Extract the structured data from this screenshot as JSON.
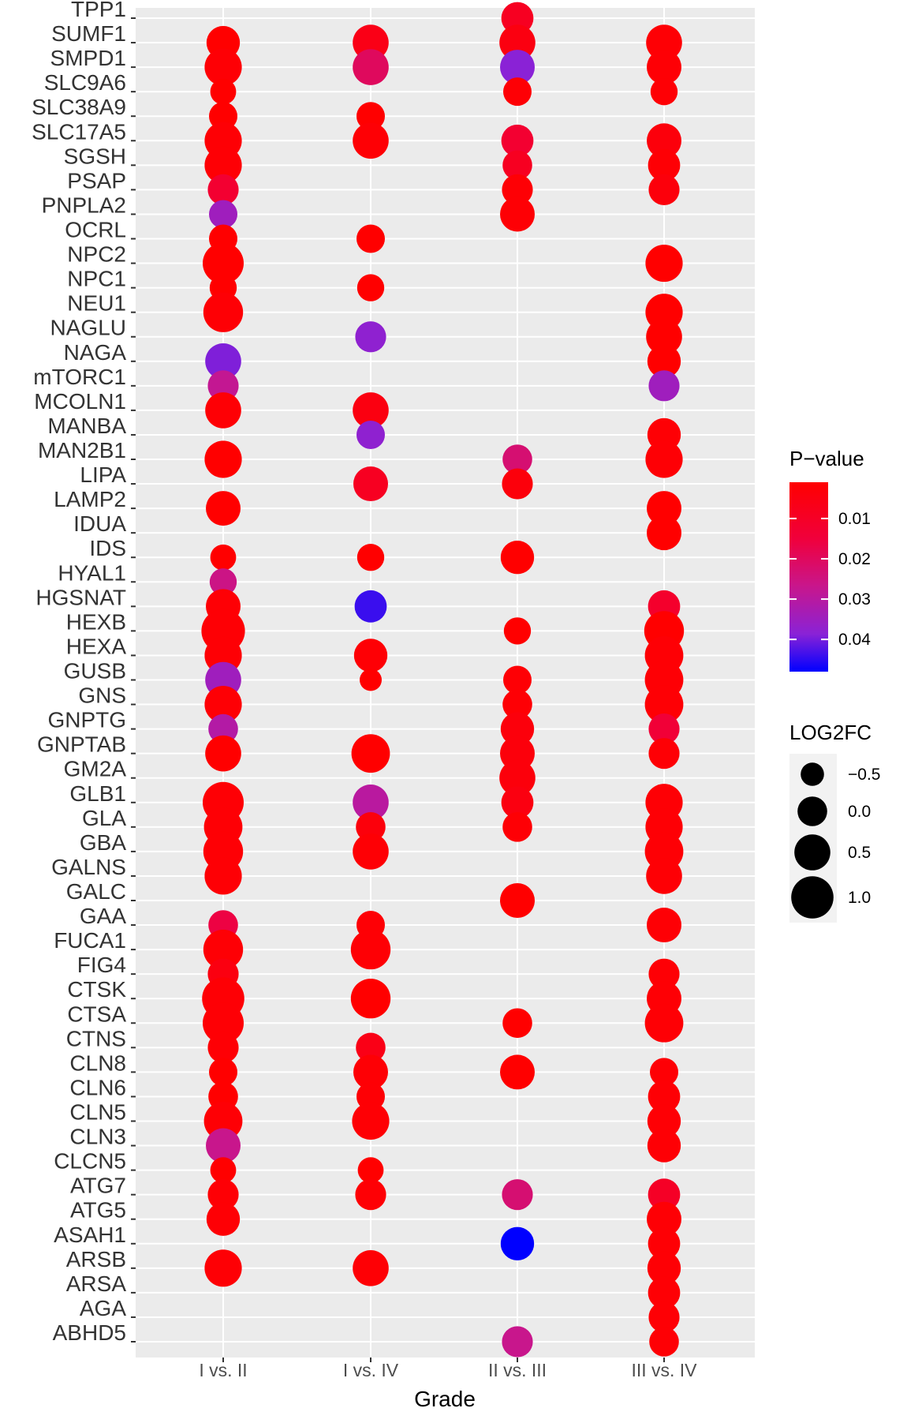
{
  "chart_data": {
    "type": "scatter",
    "xlabel": "Grade",
    "ylabel": "",
    "categories": [
      "I vs. II",
      "I vs. IV",
      "II vs. III",
      "III vs. IV"
    ],
    "genes": [
      "TPP1",
      "SUMF1",
      "SMPD1",
      "SLC9A6",
      "SLC38A9",
      "SLC17A5",
      "SGSH",
      "PSAP",
      "PNPLA2",
      "OCRL",
      "NPC2",
      "NPC1",
      "NEU1",
      "NAGLU",
      "NAGA",
      "mTORC1",
      "MCOLN1",
      "MANBA",
      "MAN2B1",
      "LIPA",
      "LAMP2",
      "IDUA",
      "IDS",
      "HYAL1",
      "HGSNAT",
      "HEXB",
      "HEXA",
      "GUSB",
      "GNS",
      "GNPTG",
      "GNPTAB",
      "GM2A",
      "GLB1",
      "GLA",
      "GBA",
      "GALNS",
      "GALC",
      "GAA",
      "FUCA1",
      "FIG4",
      "CTSK",
      "CTSA",
      "CTNS",
      "CLN8",
      "CLN6",
      "CLN5",
      "CLN3",
      "CLCN5",
      "ATG7",
      "ATG5",
      "ASAH1",
      "ARSB",
      "ARSA",
      "AGA",
      "ABHD5"
    ],
    "points": [
      {
        "gene": "TPP1",
        "grade": "II vs. III",
        "log2fc": 0.2,
        "p": 0.007
      },
      {
        "gene": "SUMF1",
        "grade": "I vs. II",
        "log2fc": 0.3,
        "p": 0.001
      },
      {
        "gene": "SUMF1",
        "grade": "I vs. IV",
        "log2fc": 0.5,
        "p": 0.005
      },
      {
        "gene": "SUMF1",
        "grade": "II vs. III",
        "log2fc": 0.5,
        "p": 0.004
      },
      {
        "gene": "SUMF1",
        "grade": "III vs. IV",
        "log2fc": 0.5,
        "p": 0.002
      },
      {
        "gene": "SMPD1",
        "grade": "I vs. II",
        "log2fc": 0.6,
        "p": 0.002
      },
      {
        "gene": "SMPD1",
        "grade": "I vs. IV",
        "log2fc": 0.5,
        "p": 0.017
      },
      {
        "gene": "SMPD1",
        "grade": "II vs. III",
        "log2fc": 0.4,
        "p": 0.036
      },
      {
        "gene": "SMPD1",
        "grade": "III vs. IV",
        "log2fc": 0.4,
        "p": 0.002
      },
      {
        "gene": "SLC9A6",
        "grade": "I vs. II",
        "log2fc": -0.3,
        "p": 0.001
      },
      {
        "gene": "SLC9A6",
        "grade": "II vs. III",
        "log2fc": -0.1,
        "p": 0.002
      },
      {
        "gene": "SLC9A6",
        "grade": "III vs. IV",
        "log2fc": -0.2,
        "p": 0.002
      },
      {
        "gene": "SLC38A9",
        "grade": "I vs. II",
        "log2fc": -0.1,
        "p": 0.001
      },
      {
        "gene": "SLC38A9",
        "grade": "I vs. IV",
        "log2fc": -0.1,
        "p": 0.001
      },
      {
        "gene": "SLC17A5",
        "grade": "I vs. II",
        "log2fc": 0.6,
        "p": 0.002
      },
      {
        "gene": "SLC17A5",
        "grade": "I vs. IV",
        "log2fc": 0.5,
        "p": 0.002
      },
      {
        "gene": "SLC17A5",
        "grade": "II vs. III",
        "log2fc": 0.2,
        "p": 0.01
      },
      {
        "gene": "SLC17A5",
        "grade": "III vs. IV",
        "log2fc": 0.4,
        "p": 0.003
      },
      {
        "gene": "SGSH",
        "grade": "I vs. II",
        "log2fc": 0.6,
        "p": 0.002
      },
      {
        "gene": "SGSH",
        "grade": "II vs. III",
        "log2fc": 0.0,
        "p": 0.007
      },
      {
        "gene": "SGSH",
        "grade": "III vs. IV",
        "log2fc": 0.2,
        "p": 0.002
      },
      {
        "gene": "PSAP",
        "grade": "I vs. II",
        "log2fc": 0.1,
        "p": 0.01
      },
      {
        "gene": "PSAP",
        "grade": "II vs. III",
        "log2fc": 0.1,
        "p": 0.002
      },
      {
        "gene": "PSAP",
        "grade": "III vs. IV",
        "log2fc": 0.1,
        "p": 0.003
      },
      {
        "gene": "PNPLA2",
        "grade": "I vs. II",
        "log2fc": -0.1,
        "p": 0.032
      },
      {
        "gene": "PNPLA2",
        "grade": "II vs. III",
        "log2fc": 0.4,
        "p": 0.002
      },
      {
        "gene": "OCRL",
        "grade": "I vs. II",
        "log2fc": -0.1,
        "p": 0.001
      },
      {
        "gene": "OCRL",
        "grade": "I vs. IV",
        "log2fc": -0.1,
        "p": 0.001
      },
      {
        "gene": "NPC2",
        "grade": "I vs. II",
        "log2fc": 0.9,
        "p": 0.001
      },
      {
        "gene": "NPC2",
        "grade": "III vs. IV",
        "log2fc": 0.6,
        "p": 0.001
      },
      {
        "gene": "NPC1",
        "grade": "I vs. II",
        "log2fc": -0.2,
        "p": 0.001
      },
      {
        "gene": "NPC1",
        "grade": "I vs. IV",
        "log2fc": -0.2,
        "p": 0.001
      },
      {
        "gene": "NEU1",
        "grade": "I vs. II",
        "log2fc": 0.8,
        "p": 0.002
      },
      {
        "gene": "NEU1",
        "grade": "III vs. IV",
        "log2fc": 0.6,
        "p": 0.001
      },
      {
        "gene": "NAGLU",
        "grade": "I vs. IV",
        "log2fc": 0.1,
        "p": 0.035
      },
      {
        "gene": "NAGLU",
        "grade": "III vs. IV",
        "log2fc": 0.5,
        "p": 0.001
      },
      {
        "gene": "NAGA",
        "grade": "I vs. II",
        "log2fc": 0.5,
        "p": 0.037
      },
      {
        "gene": "NAGA",
        "grade": "III vs. IV",
        "log2fc": 0.3,
        "p": 0.001
      },
      {
        "gene": "mTORC1",
        "grade": "I vs. II",
        "log2fc": 0.1,
        "p": 0.025
      },
      {
        "gene": "mTORC1",
        "grade": "III vs. IV",
        "log2fc": 0.1,
        "p": 0.032
      },
      {
        "gene": "MCOLN1",
        "grade": "I vs. II",
        "log2fc": 0.5,
        "p": 0.002
      },
      {
        "gene": "MCOLN1",
        "grade": "I vs. IV",
        "log2fc": 0.5,
        "p": 0.004
      },
      {
        "gene": "MANBA",
        "grade": "I vs. IV",
        "log2fc": -0.1,
        "p": 0.035
      },
      {
        "gene": "MANBA",
        "grade": "III vs. IV",
        "log2fc": 0.3,
        "p": 0.002
      },
      {
        "gene": "MAN2B1",
        "grade": "I vs. II",
        "log2fc": 0.6,
        "p": 0.001
      },
      {
        "gene": "MAN2B1",
        "grade": "II vs. III",
        "log2fc": 0.0,
        "p": 0.02
      },
      {
        "gene": "MAN2B1",
        "grade": "III vs. IV",
        "log2fc": 0.6,
        "p": 0.002
      },
      {
        "gene": "LIPA",
        "grade": "I vs. IV",
        "log2fc": 0.4,
        "p": 0.007
      },
      {
        "gene": "LIPA",
        "grade": "II vs. III",
        "log2fc": 0.1,
        "p": 0.003
      },
      {
        "gene": "LAMP2",
        "grade": "I vs. II",
        "log2fc": 0.4,
        "p": 0.001
      },
      {
        "gene": "LAMP2",
        "grade": "III vs. IV",
        "log2fc": 0.4,
        "p": 0.001
      },
      {
        "gene": "IDUA",
        "grade": "III vs. IV",
        "log2fc": 0.4,
        "p": 0.001
      },
      {
        "gene": "IDS",
        "grade": "I vs. II",
        "log2fc": -0.3,
        "p": 0.001
      },
      {
        "gene": "IDS",
        "grade": "I vs. IV",
        "log2fc": -0.2,
        "p": 0.001
      },
      {
        "gene": "IDS",
        "grade": "II vs. III",
        "log2fc": 0.3,
        "p": 0.001
      },
      {
        "gene": "HYAL1",
        "grade": "I vs. II",
        "log2fc": -0.2,
        "p": 0.023
      },
      {
        "gene": "HGSNAT",
        "grade": "I vs. II",
        "log2fc": 0.4,
        "p": 0.002
      },
      {
        "gene": "HGSNAT",
        "grade": "I vs. IV",
        "log2fc": 0.2,
        "p": 0.043
      },
      {
        "gene": "HGSNAT",
        "grade": "III vs. IV",
        "log2fc": 0.2,
        "p": 0.009
      },
      {
        "gene": "HEXB",
        "grade": "I vs. II",
        "log2fc": 1.1,
        "p": 0.002
      },
      {
        "gene": "HEXB",
        "grade": "II vs. III",
        "log2fc": -0.2,
        "p": 0.001
      },
      {
        "gene": "HEXB",
        "grade": "III vs. IV",
        "log2fc": 0.8,
        "p": 0.001
      },
      {
        "gene": "HEXA",
        "grade": "I vs. II",
        "log2fc": 0.6,
        "p": 0.002
      },
      {
        "gene": "HEXA",
        "grade": "I vs. IV",
        "log2fc": 0.3,
        "p": 0.002
      },
      {
        "gene": "HEXA",
        "grade": "III vs. IV",
        "log2fc": 0.7,
        "p": 0.002
      },
      {
        "gene": "GUSB",
        "grade": "I vs. II",
        "log2fc": 0.5,
        "p": 0.032
      },
      {
        "gene": "GUSB",
        "grade": "I vs. IV",
        "log2fc": -0.6,
        "p": 0.001
      },
      {
        "gene": "GUSB",
        "grade": "II vs. III",
        "log2fc": -0.1,
        "p": 0.002
      },
      {
        "gene": "GUSB",
        "grade": "III vs. IV",
        "log2fc": 0.7,
        "p": 0.002
      },
      {
        "gene": "GNS",
        "grade": "I vs. II",
        "log2fc": 0.6,
        "p": 0.002
      },
      {
        "gene": "GNS",
        "grade": "II vs. III",
        "log2fc": 0.0,
        "p": 0.002
      },
      {
        "gene": "GNS",
        "grade": "III vs. IV",
        "log2fc": 0.7,
        "p": 0.002
      },
      {
        "gene": "GNPTG",
        "grade": "I vs. II",
        "log2fc": 0.0,
        "p": 0.028
      },
      {
        "gene": "GNPTG",
        "grade": "II vs. III",
        "log2fc": 0.3,
        "p": 0.003
      },
      {
        "gene": "GNPTG",
        "grade": "III vs. IV",
        "log2fc": 0.1,
        "p": 0.011
      },
      {
        "gene": "GNPTAB",
        "grade": "I vs. II",
        "log2fc": 0.5,
        "p": 0.001
      },
      {
        "gene": "GNPTAB",
        "grade": "I vs. IV",
        "log2fc": 0.7,
        "p": 0.001
      },
      {
        "gene": "GNPTAB",
        "grade": "II vs. III",
        "log2fc": 0.4,
        "p": 0.003
      },
      {
        "gene": "GNPTAB",
        "grade": "III vs. IV",
        "log2fc": 0.1,
        "p": 0.002
      },
      {
        "gene": "GM2A",
        "grade": "II vs. III",
        "log2fc": 0.5,
        "p": 0.003
      },
      {
        "gene": "GLB1",
        "grade": "I vs. II",
        "log2fc": 0.9,
        "p": 0.002
      },
      {
        "gene": "GLB1",
        "grade": "I vs. IV",
        "log2fc": 0.5,
        "p": 0.027
      },
      {
        "gene": "GLB1",
        "grade": "II vs. III",
        "log2fc": 0.2,
        "p": 0.004
      },
      {
        "gene": "GLB1",
        "grade": "III vs. IV",
        "log2fc": 0.6,
        "p": 0.002
      },
      {
        "gene": "GLA",
        "grade": "I vs. II",
        "log2fc": 0.7,
        "p": 0.002
      },
      {
        "gene": "GLA",
        "grade": "I vs. IV",
        "log2fc": 0.0,
        "p": 0.003
      },
      {
        "gene": "GLA",
        "grade": "II vs. III",
        "log2fc": 0.0,
        "p": 0.002
      },
      {
        "gene": "GLA",
        "grade": "III vs. IV",
        "log2fc": 0.6,
        "p": 0.002
      },
      {
        "gene": "GBA",
        "grade": "I vs. II",
        "log2fc": 0.8,
        "p": 0.002
      },
      {
        "gene": "GBA",
        "grade": "I vs. IV",
        "log2fc": 0.5,
        "p": 0.002
      },
      {
        "gene": "GBA",
        "grade": "III vs. IV",
        "log2fc": 0.7,
        "p": 0.002
      },
      {
        "gene": "GALNS",
        "grade": "I vs. II",
        "log2fc": 0.6,
        "p": 0.002
      },
      {
        "gene": "GALNS",
        "grade": "III vs. IV",
        "log2fc": 0.5,
        "p": 0.002
      },
      {
        "gene": "GALC",
        "grade": "II vs. III",
        "log2fc": 0.4,
        "p": 0.001
      },
      {
        "gene": "GAA",
        "grade": "I vs. II",
        "log2fc": 0.0,
        "p": 0.013
      },
      {
        "gene": "GAA",
        "grade": "I vs. IV",
        "log2fc": -0.1,
        "p": 0.002
      },
      {
        "gene": "GAA",
        "grade": "III vs. IV",
        "log2fc": 0.4,
        "p": 0.002
      },
      {
        "gene": "FUCA1",
        "grade": "I vs. II",
        "log2fc": 0.8,
        "p": 0.002
      },
      {
        "gene": "FUCA1",
        "grade": "I vs. IV",
        "log2fc": 0.8,
        "p": 0.002
      },
      {
        "gene": "FIG4",
        "grade": "I vs. II",
        "log2fc": 0.1,
        "p": 0.004
      },
      {
        "gene": "FIG4",
        "grade": "III vs. IV",
        "log2fc": 0.1,
        "p": 0.002
      },
      {
        "gene": "CTSK",
        "grade": "I vs. II",
        "log2fc": 1.0,
        "p": 0.002
      },
      {
        "gene": "CTSK",
        "grade": "I vs. IV",
        "log2fc": 0.8,
        "p": 0.001
      },
      {
        "gene": "CTSK",
        "grade": "III vs. IV",
        "log2fc": 0.4,
        "p": 0.002
      },
      {
        "gene": "CTSA",
        "grade": "I vs. II",
        "log2fc": 0.9,
        "p": 0.002
      },
      {
        "gene": "CTSA",
        "grade": "II vs. III",
        "log2fc": 0.0,
        "p": 0.001
      },
      {
        "gene": "CTSA",
        "grade": "III vs. IV",
        "log2fc": 0.7,
        "p": 0.002
      },
      {
        "gene": "CTNS",
        "grade": "I vs. II",
        "log2fc": 0.1,
        "p": 0.002
      },
      {
        "gene": "CTNS",
        "grade": "I vs. IV",
        "log2fc": 0.0,
        "p": 0.005
      },
      {
        "gene": "CLN8",
        "grade": "I vs. II",
        "log2fc": -0.1,
        "p": 0.001
      },
      {
        "gene": "CLN8",
        "grade": "I vs. IV",
        "log2fc": 0.4,
        "p": 0.002
      },
      {
        "gene": "CLN8",
        "grade": "II vs. III",
        "log2fc": 0.4,
        "p": 0.001
      },
      {
        "gene": "CLN8",
        "grade": "III vs. IV",
        "log2fc": -0.1,
        "p": 0.002
      },
      {
        "gene": "CLN6",
        "grade": "I vs. II",
        "log2fc": 0.0,
        "p": 0.001
      },
      {
        "gene": "CLN6",
        "grade": "I vs. IV",
        "log2fc": -0.1,
        "p": 0.002
      },
      {
        "gene": "CLN6",
        "grade": "III vs. IV",
        "log2fc": 0.2,
        "p": 0.002
      },
      {
        "gene": "CLN5",
        "grade": "I vs. II",
        "log2fc": 0.7,
        "p": 0.002
      },
      {
        "gene": "CLN5",
        "grade": "I vs. IV",
        "log2fc": 0.6,
        "p": 0.002
      },
      {
        "gene": "CLN5",
        "grade": "III vs. IV",
        "log2fc": 0.3,
        "p": 0.002
      },
      {
        "gene": "CLN3",
        "grade": "I vs. II",
        "log2fc": 0.4,
        "p": 0.024
      },
      {
        "gene": "CLN3",
        "grade": "III vs. IV",
        "log2fc": 0.3,
        "p": 0.002
      },
      {
        "gene": "CLCN5",
        "grade": "I vs. II",
        "log2fc": -0.3,
        "p": 0.001
      },
      {
        "gene": "CLCN5",
        "grade": "I vs. IV",
        "log2fc": -0.3,
        "p": 0.001
      },
      {
        "gene": "ATG7",
        "grade": "I vs. II",
        "log2fc": 0.1,
        "p": 0.002
      },
      {
        "gene": "ATG7",
        "grade": "I vs. IV",
        "log2fc": 0.1,
        "p": 0.002
      },
      {
        "gene": "ATG7",
        "grade": "II vs. III",
        "log2fc": 0.1,
        "p": 0.02
      },
      {
        "gene": "ATG7",
        "grade": "III vs. IV",
        "log2fc": 0.2,
        "p": 0.008
      },
      {
        "gene": "ATG5",
        "grade": "I vs. II",
        "log2fc": 0.3,
        "p": 0.002
      },
      {
        "gene": "ATG5",
        "grade": "III vs. IV",
        "log2fc": 0.4,
        "p": 0.002
      },
      {
        "gene": "ASAH1",
        "grade": "II vs. III",
        "log2fc": 0.3,
        "p": 0.048
      },
      {
        "gene": "ASAH1",
        "grade": "III vs. IV",
        "log2fc": 0.2,
        "p": 0.002
      },
      {
        "gene": "ARSB",
        "grade": "I vs. II",
        "log2fc": 0.6,
        "p": 0.002
      },
      {
        "gene": "ARSB",
        "grade": "I vs. IV",
        "log2fc": 0.5,
        "p": 0.002
      },
      {
        "gene": "ARSB",
        "grade": "III vs. IV",
        "log2fc": 0.3,
        "p": 0.002
      },
      {
        "gene": "ARSA",
        "grade": "III vs. IV",
        "log2fc": 0.2,
        "p": 0.002
      },
      {
        "gene": "AGA",
        "grade": "III vs. IV",
        "log2fc": 0.1,
        "p": 0.002
      },
      {
        "gene": "ABHD5",
        "grade": "II vs. III",
        "log2fc": 0.1,
        "p": 0.024
      },
      {
        "gene": "ABHD5",
        "grade": "III vs. IV",
        "log2fc": 0.0,
        "p": 0.002
      }
    ],
    "legend": {
      "color_title": "P−value",
      "color_labels": [
        "0.01",
        "0.02",
        "0.03",
        "0.04"
      ],
      "color_breaks": [
        0.01,
        0.02,
        0.03,
        0.04
      ],
      "color_range": [
        0.001,
        0.048
      ],
      "color_low": "#FF0000",
      "color_high": "#0000FF",
      "size_title": "LOG2FC",
      "size_labels": [
        "−0.5",
        "0.0",
        "0.5",
        "1.0"
      ],
      "size_breaks": [
        -0.5,
        0.0,
        0.5,
        1.0
      ],
      "placement": "right"
    },
    "colors": {
      "panel_background": "#EBEBEB",
      "gridline": "#FFFFFF"
    },
    "grid": true
  }
}
